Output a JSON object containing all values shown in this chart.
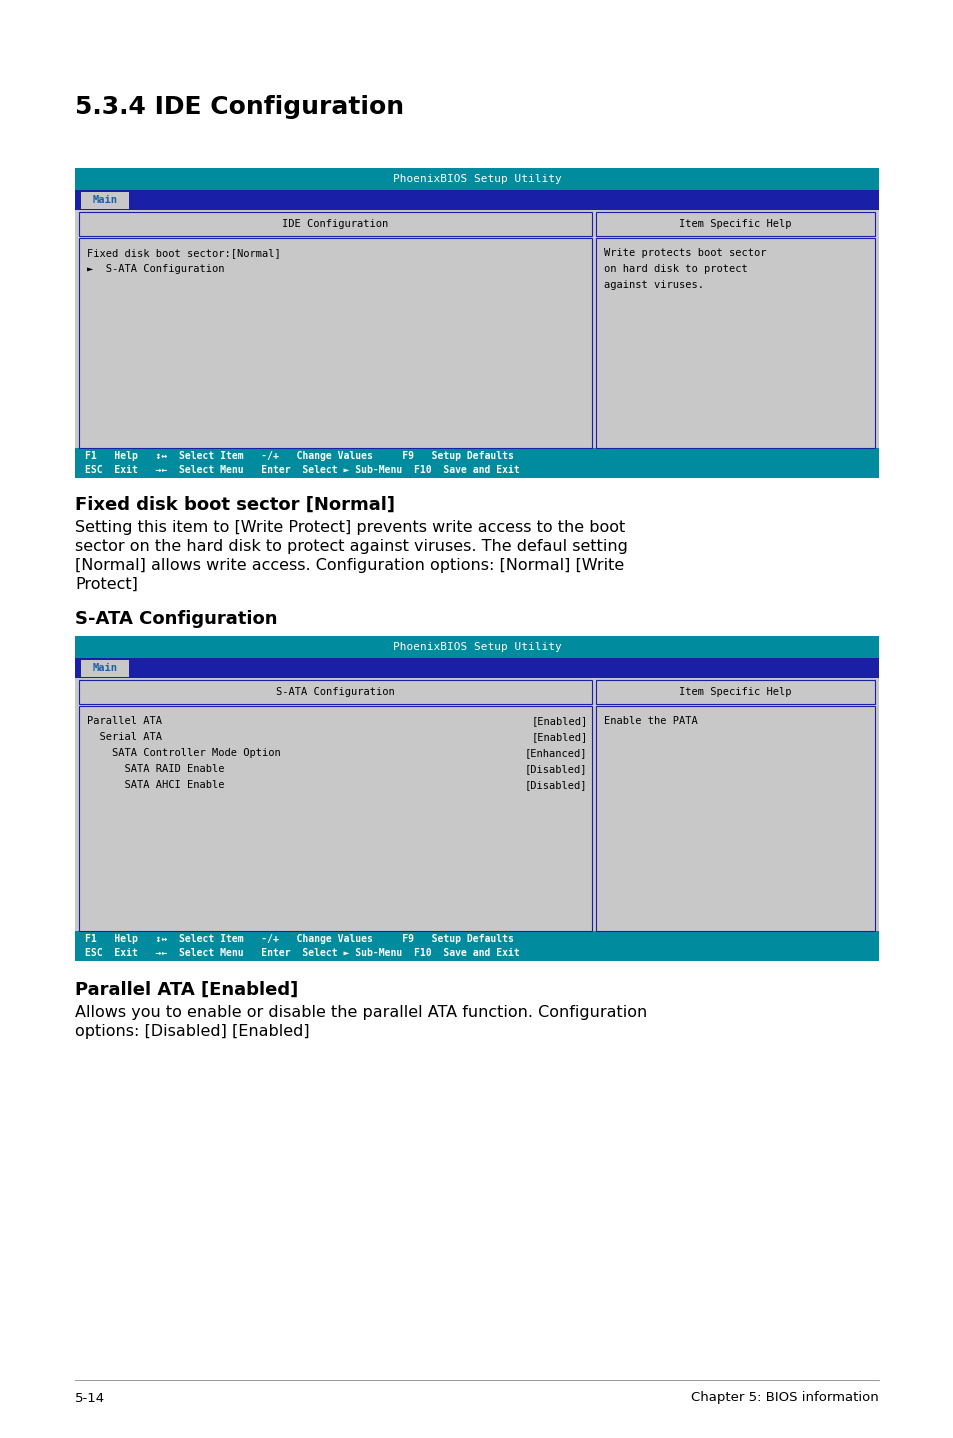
{
  "page_title": "5.3.4 IDE Configuration",
  "section1_title": "Fixed disk boot sector [Normal]",
  "section1_text": "Setting this item to [Write Protect] prevents write access to the boot\nsector on the hard disk to protect against viruses. The defaul setting\n[Normal] allows write access. Configuration options: [Normal] [Write\nProtect]",
  "section2_title": "S-ATA Configuration",
  "section3_title": "Parallel ATA [Enabled]",
  "section3_text": "Allows you to enable or disable the parallel ATA function. Configuration\noptions: [Disabled] [Enabled]",
  "footer_left": "5-14",
  "footer_right": "Chapter 5: BIOS information",
  "bios_header_color": "#008B9E",
  "bios_header_text": "PhoenixBIOS Setup Utility",
  "bios_menu_bar_color": "#1A1FA8",
  "bios_menu_tab": "Main",
  "bios_tab_bg": "#C8C8C8",
  "bios_tab_text_color": "#1A5FAA",
  "bios_body_color": "#C8C8C8",
  "bios_cell_border_color": "#1A1FA8",
  "bios_footer_color": "#008B9E",
  "bios_footer_text_color": "#FFFFFF",
  "bios_mono_color": "#000000",
  "screen1": {
    "col1_header": "IDE Configuration",
    "col2_header": "Item Specific Help",
    "rows_left": [
      "Fixed disk boot sector:[Normal]",
      "►  S-ATA Configuration"
    ],
    "rows_right": [
      "",
      ""
    ],
    "help_text": "Write protects boot sector\non hard disk to protect\nagainst viruses.",
    "footer_line1": "F1   Help   ↕↔  Select Item   -/+   Change Values     F9   Setup Defaults",
    "footer_line2": "ESC  Exit   →←  Select Menu   Enter  Select ► Sub-Menu  F10  Save and Exit"
  },
  "screen2": {
    "col1_header": "S-ATA Configuration",
    "col2_header": "Item Specific Help",
    "rows_left": [
      "Parallel ATA",
      "  Serial ATA",
      "    SATA Controller Mode Option",
      "      SATA RAID Enable",
      "      SATA AHCI Enable"
    ],
    "rows_right": [
      "[Enabled]",
      "[Enabled]",
      "[Enhanced]",
      "[Disabled]",
      "[Disabled]"
    ],
    "help_text": "Enable the PATA",
    "footer_line1": "F1   Help   ↕↔  Select Item   -/+   Change Values     F9   Setup Defaults",
    "footer_line2": "ESC  Exit   →←  Select Menu   Enter  Select ► Sub-Menu  F10  Save and Exit"
  },
  "background_color": "#FFFFFF"
}
